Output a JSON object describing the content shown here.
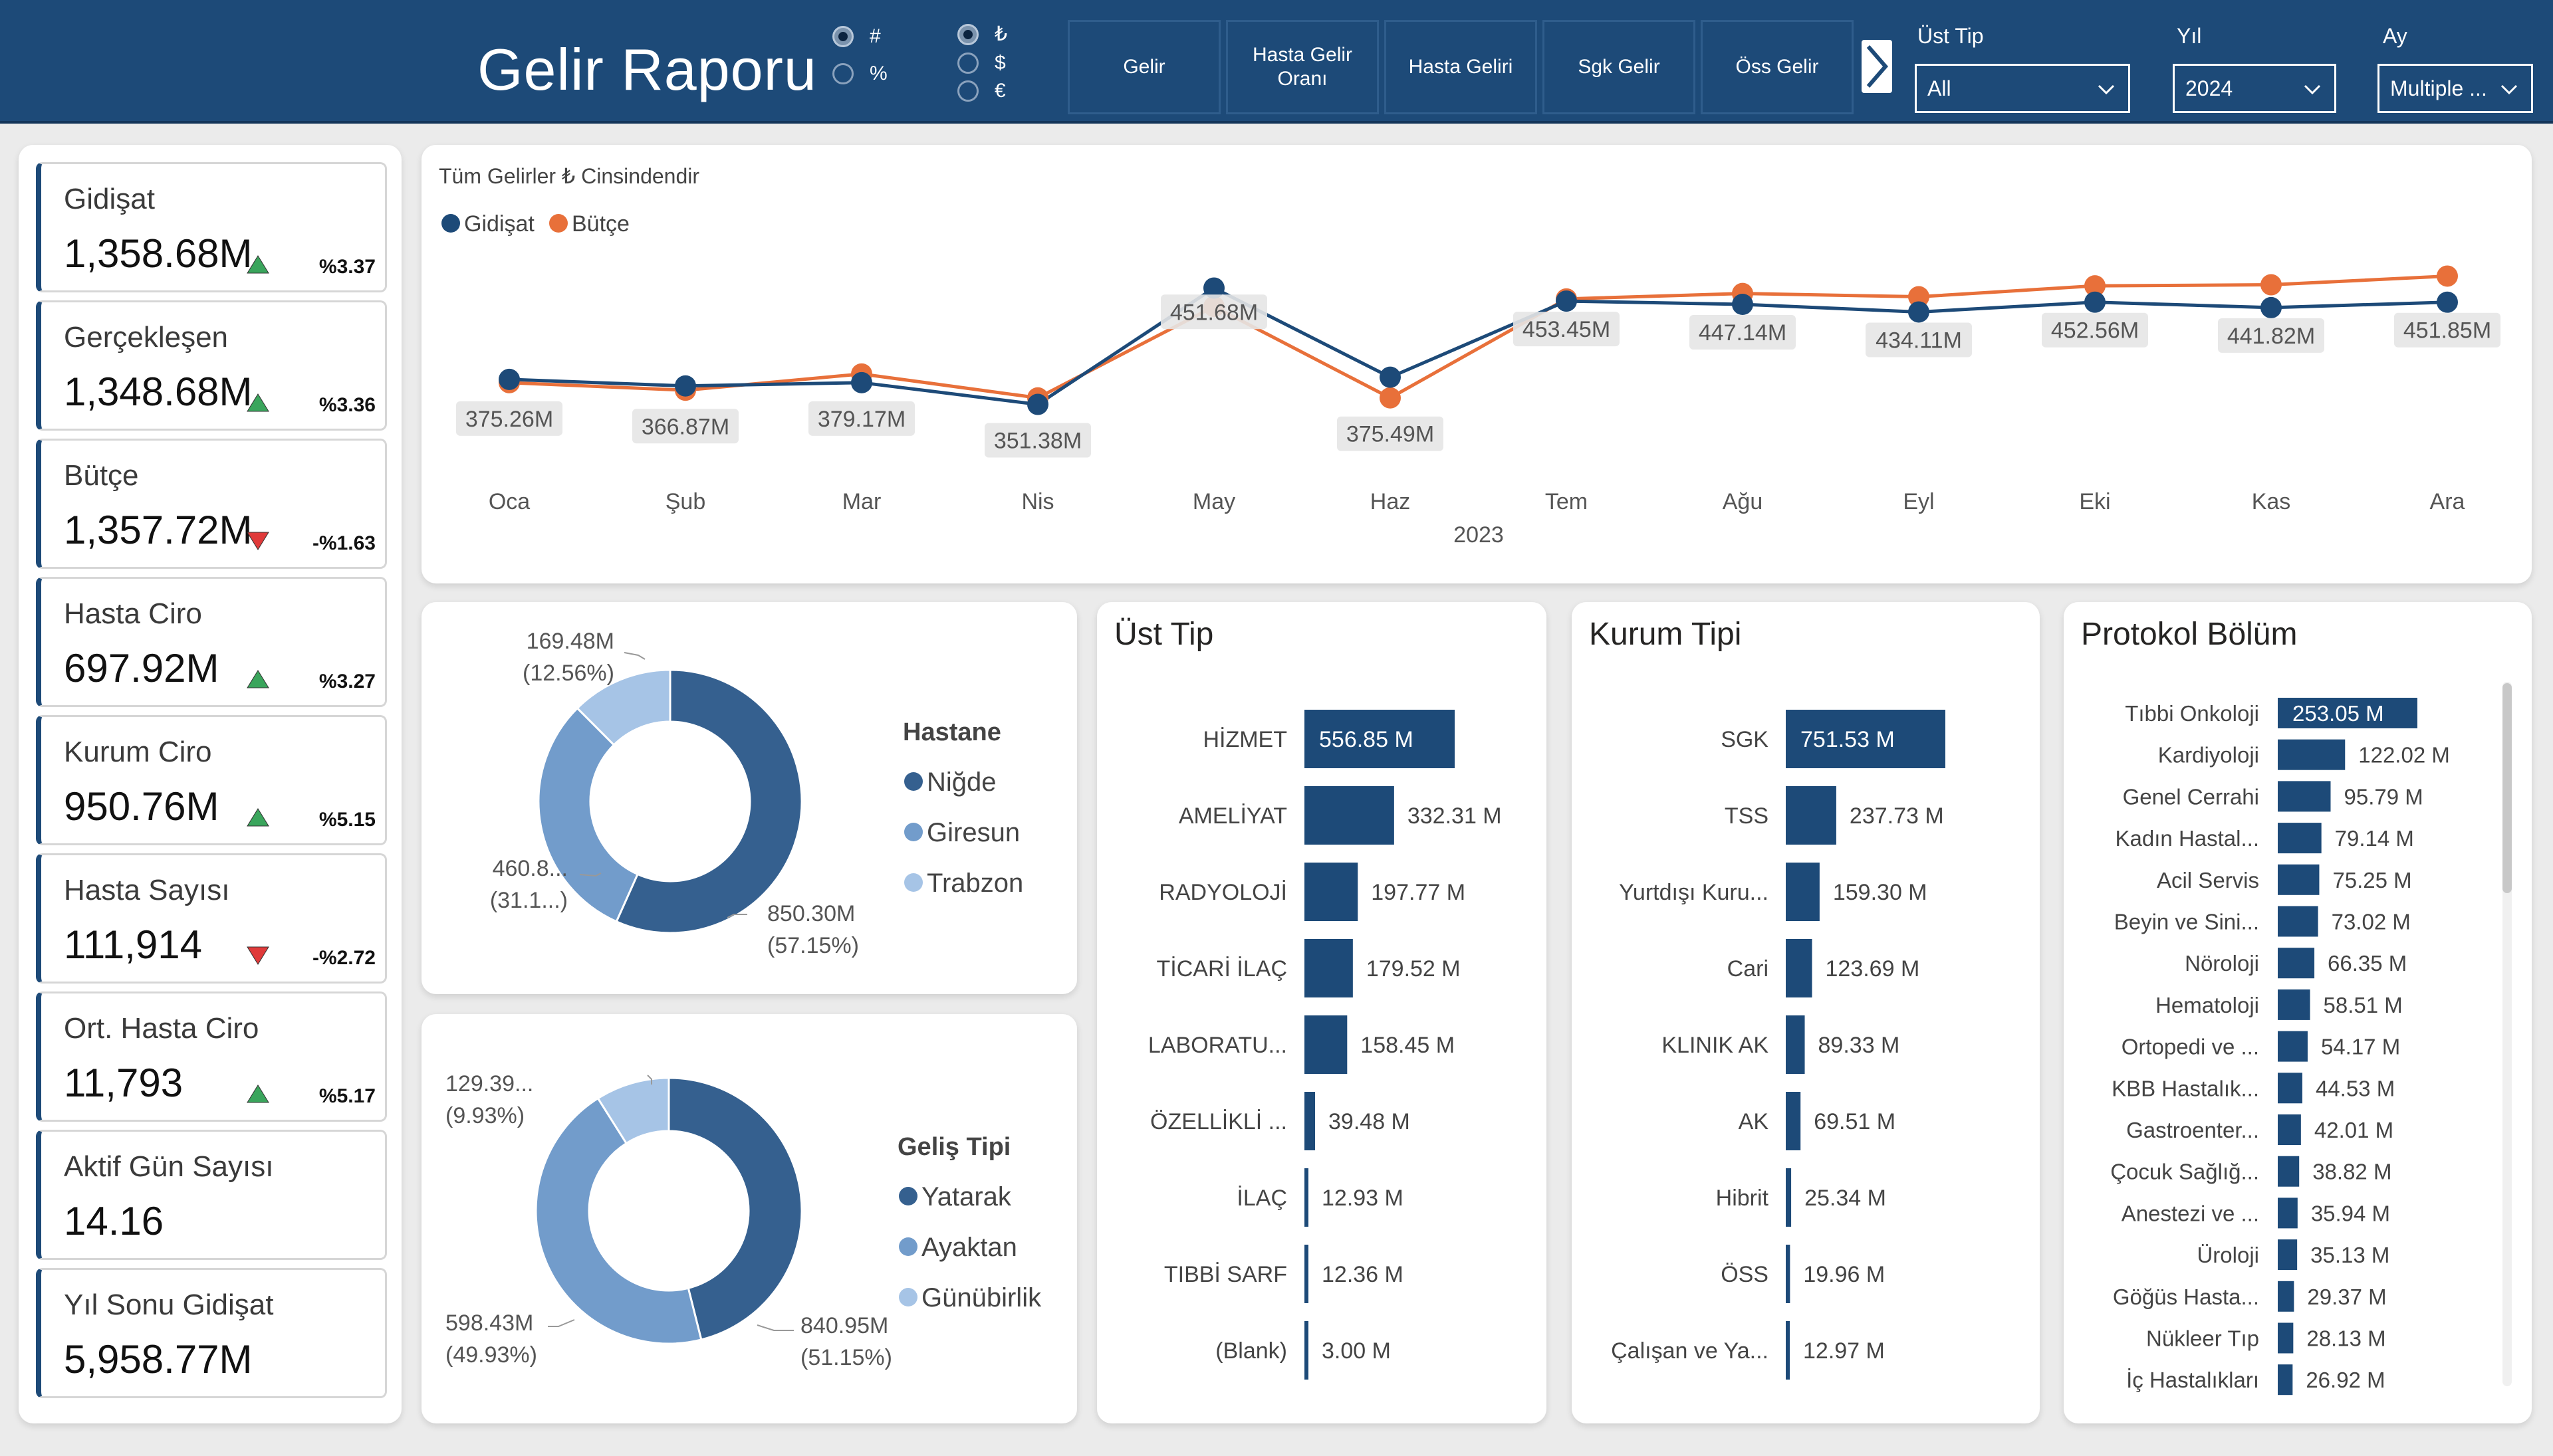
{
  "header": {
    "title": "Gelir Raporu",
    "format_options": [
      {
        "symbol": "#",
        "selected": true
      },
      {
        "symbol": "%",
        "selected": false
      }
    ],
    "currency_options": [
      {
        "symbol": "₺",
        "selected": true
      },
      {
        "symbol": "$",
        "selected": false
      },
      {
        "symbol": "€",
        "selected": false
      }
    ],
    "nav_buttons": [
      "Gelir",
      "Hasta Gelir Oranı",
      "Hasta Geliri",
      "Sgk Gelir",
      "Öss Gelir"
    ],
    "arrow_icon": "chevron-right-icon",
    "filters": [
      {
        "label": "Üst Tip",
        "value": "All"
      },
      {
        "label": "Yıl",
        "value": "2024"
      },
      {
        "label": "Ay",
        "value": "Multiple ..."
      }
    ]
  },
  "kpis": [
    {
      "label": "Gidişat",
      "value": "1,358.68M",
      "pct": "%3.37",
      "trend": "up"
    },
    {
      "label": "Gerçekleşen",
      "value": "1,348.68M",
      "pct": "%3.36",
      "trend": "up"
    },
    {
      "label": "Bütçe",
      "value": "1,357.72M",
      "pct": "-%1.63",
      "trend": "down"
    },
    {
      "label": "Hasta Ciro",
      "value": "697.92M",
      "pct": "%3.27",
      "trend": "up"
    },
    {
      "label": "Kurum Ciro",
      "value": "950.76M",
      "pct": "%5.15",
      "trend": "up"
    },
    {
      "label": "Hasta Sayısı",
      "value": "111,914",
      "pct": "-%2.72",
      "trend": "down"
    },
    {
      "label": "Ort. Hasta Ciro",
      "value": "11,793",
      "pct": "%5.17",
      "trend": "up"
    },
    {
      "label": "Aktif Gün Sayısı",
      "value": "14.16",
      "pct": "",
      "trend": ""
    },
    {
      "label": "Yıl Sonu Gidişat",
      "value": "5,958.77M",
      "pct": "",
      "trend": ""
    }
  ],
  "colors": {
    "navy": "#1d4a78",
    "orange": "#e8703a",
    "up": "#3aa55c",
    "down": "#e03a3a",
    "donut_dark": "#35608f",
    "donut_mid": "#729ccb",
    "donut_light": "#a6c4e6"
  },
  "chart_data": [
    {
      "type": "line",
      "title": "Tüm Gelirler ₺ Cinsindendir",
      "xlabel": "2023",
      "legend_position": "top-left",
      "categories": [
        "Oca",
        "Şub",
        "Mar",
        "Nis",
        "May",
        "Haz",
        "Tem",
        "Ağu",
        "Eyl",
        "Eki",
        "Kas",
        "Ara"
      ],
      "series": [
        {
          "name": "Gidişat",
          "values": [
            376,
            370,
            373,
            353,
            460,
            378,
            448,
            445,
            438,
            447,
            442,
            447
          ]
        },
        {
          "name": "Bütçe",
          "values": [
            373,
            366,
            381,
            359,
            443,
            359,
            450,
            455,
            452,
            462,
            463,
            471
          ]
        }
      ],
      "data_labels": [
        "375.26M",
        "366.87M",
        "379.17M",
        "351.38M",
        "451.68M",
        "375.49M",
        "453.45M",
        "447.14M",
        "434.11M",
        "452.56M",
        "441.82M",
        "451.85M"
      ],
      "ylim": [
        280,
        500
      ]
    },
    {
      "type": "pie",
      "title": "Hastane",
      "categories": [
        "Niğde",
        "Giresun",
        "Trabzon"
      ],
      "values": [
        57.15,
        31.1,
        12.56
      ],
      "labels": [
        "850.30M\n(57.15%)",
        "460.8...\n(31.1...)",
        "169.48M\n(12.56%)"
      ]
    },
    {
      "type": "pie",
      "title": "Geliş Tipi",
      "categories": [
        "Yatarak",
        "Ayaktan",
        "Günübirlik"
      ],
      "values": [
        51.15,
        49.93,
        9.93
      ],
      "labels": [
        "840.95M\n(51.15%)",
        "598.43M\n(49.93%)",
        "129.39...\n(9.93%)"
      ]
    },
    {
      "type": "bar",
      "title": "Üst Tip",
      "categories": [
        "HİZMET",
        "AMELİYAT",
        "RADYOLOJİ",
        "TİCARİ İLAÇ",
        "LABORATU...",
        "ÖZELLİKLİ ...",
        "İLAÇ",
        "TIBBİ SARF",
        "(Blank)"
      ],
      "values": [
        556.85,
        332.31,
        197.77,
        179.52,
        158.45,
        39.48,
        12.93,
        12.36,
        3.0
      ],
      "value_labels": [
        "556.85 M",
        "332.31 M",
        "197.77 M",
        "179.52 M",
        "158.45 M",
        "39.48 M",
        "12.93 M",
        "12.36 M",
        "3.00 M"
      ]
    },
    {
      "type": "bar",
      "title": "Kurum Tipi",
      "categories": [
        "SGK",
        "TSS",
        "Yurtdışı Kuru...",
        "Cari",
        "KLINIK AK",
        "AK",
        "Hibrit",
        "ÖSS",
        "Çalışan ve Ya..."
      ],
      "values": [
        751.53,
        237.73,
        159.3,
        123.69,
        89.33,
        69.51,
        25.34,
        19.96,
        12.97
      ],
      "value_labels": [
        "751.53 M",
        "237.73 M",
        "159.30 M",
        "123.69 M",
        "89.33 M",
        "69.51 M",
        "25.34 M",
        "19.96 M",
        "12.97 M"
      ]
    },
    {
      "type": "bar",
      "title": "Protokol Bölüm",
      "categories": [
        "Tıbbi Onkoloji",
        "Kardiyoloji",
        "Genel Cerrahi",
        "Kadın Hastal...",
        "Acil Servis",
        "Beyin ve Sini...",
        "Nöroloji",
        "Hematoloji",
        "Ortopedi ve ...",
        "KBB Hastalık...",
        "Gastroenter...",
        "Çocuk Sağlığ...",
        "Anestezi ve ...",
        "Üroloji",
        "Göğüs Hasta...",
        "Nükleer Tıp",
        "İç Hastalıkları"
      ],
      "values": [
        253.05,
        122.02,
        95.79,
        79.14,
        75.25,
        73.02,
        66.35,
        58.51,
        54.17,
        44.53,
        42.01,
        38.82,
        35.94,
        35.13,
        29.37,
        28.13,
        26.92
      ],
      "value_labels": [
        "253.05 M",
        "122.02 M",
        "95.79 M",
        "79.14 M",
        "75.25 M",
        "73.02 M",
        "66.35    M",
        "58.51 M",
        "54.17 M",
        "44.53 M",
        "42.01 M",
        "38.82 M",
        "35.94 M",
        "35.13 M",
        "29.37 M",
        "28.13 M",
        "26.92 M"
      ]
    }
  ]
}
